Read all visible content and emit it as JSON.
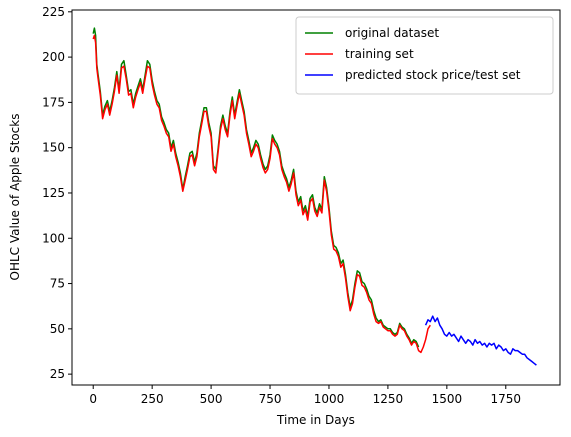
{
  "chart_data": {
    "type": "line",
    "title": "",
    "xlabel": "Time in Days",
    "ylabel": "OHLC Value of Apple Stocks",
    "xlim": [
      -90,
      1980
    ],
    "ylim": [
      19,
      226
    ],
    "xticks": [
      0,
      250,
      500,
      750,
      1000,
      1250,
      1500,
      1750
    ],
    "yticks": [
      25,
      50,
      75,
      100,
      125,
      150,
      175,
      200,
      225
    ],
    "grid": false,
    "legend_position": "top-right",
    "series": [
      {
        "name": "original dataset",
        "color": "#008000",
        "x": [
          0,
          5,
          10,
          15,
          20,
          30,
          40,
          50,
          60,
          70,
          80,
          90,
          100,
          110,
          120,
          130,
          140,
          150,
          160,
          170,
          180,
          190,
          200,
          210,
          220,
          230,
          240,
          250,
          260,
          270,
          280,
          290,
          300,
          310,
          320,
          330,
          340,
          350,
          360,
          370,
          380,
          390,
          400,
          410,
          420,
          430,
          440,
          450,
          460,
          470,
          480,
          490,
          500,
          510,
          520,
          530,
          540,
          550,
          560,
          570,
          580,
          590,
          600,
          610,
          620,
          630,
          640,
          650,
          660,
          670,
          680,
          690,
          700,
          710,
          720,
          730,
          740,
          750,
          760,
          770,
          780,
          790,
          800,
          810,
          820,
          830,
          840,
          850,
          860,
          870,
          880,
          890,
          900,
          910,
          920,
          930,
          940,
          950,
          960,
          970,
          980,
          990,
          1000,
          1010,
          1020,
          1030,
          1040,
          1050,
          1060,
          1070,
          1080,
          1090,
          1100,
          1110,
          1120,
          1130,
          1140,
          1150,
          1160,
          1170,
          1180,
          1190,
          1200,
          1210,
          1220,
          1230,
          1240,
          1250,
          1260,
          1270,
          1280,
          1290,
          1300,
          1310,
          1320,
          1330,
          1340,
          1350,
          1360,
          1370,
          1380
        ],
        "y": [
          213,
          216,
          212,
          196,
          191,
          181,
          168,
          173,
          176,
          170,
          176,
          183,
          192,
          182,
          196,
          198,
          190,
          181,
          182,
          174,
          180,
          184,
          188,
          182,
          190,
          198,
          196,
          187,
          181,
          176,
          174,
          167,
          164,
          160,
          158,
          150,
          154,
          147,
          142,
          136,
          127,
          134,
          140,
          147,
          148,
          142,
          147,
          158,
          165,
          172,
          172,
          164,
          158,
          140,
          138,
          150,
          162,
          168,
          162,
          158,
          170,
          178,
          168,
          175,
          182,
          176,
          170,
          160,
          154,
          147,
          150,
          154,
          152,
          146,
          141,
          138,
          140,
          146,
          157,
          154,
          152,
          148,
          140,
          136,
          133,
          128,
          132,
          138,
          126,
          120,
          123,
          115,
          118,
          112,
          122,
          124,
          117,
          114,
          119,
          116,
          134,
          128,
          117,
          104,
          96,
          95,
          92,
          86,
          88,
          80,
          70,
          62,
          66,
          75,
          82,
          81,
          76,
          75,
          72,
          68,
          66,
          60,
          56,
          54,
          55,
          52,
          51,
          50,
          50,
          48,
          47,
          48,
          53,
          51,
          50,
          47,
          45,
          42,
          44,
          43,
          40
        ]
      },
      {
        "name": "training set",
        "color": "#ff0000",
        "x": [
          0,
          5,
          10,
          15,
          20,
          30,
          40,
          50,
          60,
          70,
          80,
          90,
          100,
          110,
          120,
          130,
          140,
          150,
          160,
          170,
          180,
          190,
          200,
          210,
          220,
          230,
          240,
          250,
          260,
          270,
          280,
          290,
          300,
          310,
          320,
          330,
          340,
          350,
          360,
          370,
          380,
          390,
          400,
          410,
          420,
          430,
          440,
          450,
          460,
          470,
          480,
          490,
          500,
          510,
          520,
          530,
          540,
          550,
          560,
          570,
          580,
          590,
          600,
          610,
          620,
          630,
          640,
          650,
          660,
          670,
          680,
          690,
          700,
          710,
          720,
          730,
          740,
          750,
          760,
          770,
          780,
          790,
          800,
          810,
          820,
          830,
          840,
          850,
          860,
          870,
          880,
          890,
          900,
          910,
          920,
          930,
          940,
          950,
          960,
          970,
          980,
          990,
          1000,
          1010,
          1020,
          1030,
          1040,
          1050,
          1060,
          1070,
          1080,
          1090,
          1100,
          1110,
          1120,
          1130,
          1140,
          1150,
          1160,
          1170,
          1180,
          1190,
          1200,
          1210,
          1220,
          1230,
          1240,
          1250,
          1260,
          1270,
          1280,
          1290,
          1300,
          1310,
          1320,
          1330,
          1340,
          1350,
          1360,
          1370,
          1380,
          1390,
          1400,
          1410,
          1420,
          1430
        ],
        "y": [
          210,
          212,
          208,
          194,
          189,
          179,
          166,
          171,
          174,
          168,
          174,
          181,
          190,
          180,
          194,
          195,
          188,
          179,
          180,
          172,
          178,
          182,
          186,
          180,
          188,
          195,
          194,
          185,
          179,
          174,
          172,
          165,
          162,
          158,
          156,
          148,
          152,
          145,
          140,
          134,
          126,
          132,
          138,
          145,
          146,
          140,
          145,
          156,
          163,
          170,
          170,
          162,
          156,
          138,
          136,
          148,
          160,
          166,
          160,
          156,
          168,
          176,
          166,
          173,
          180,
          174,
          168,
          158,
          152,
          145,
          148,
          152,
          150,
          144,
          139,
          136,
          138,
          144,
          155,
          152,
          150,
          146,
          138,
          134,
          131,
          126,
          130,
          136,
          124,
          118,
          121,
          113,
          116,
          110,
          120,
          122,
          115,
          112,
          117,
          114,
          132,
          126,
          115,
          102,
          94,
          93,
          90,
          84,
          86,
          78,
          68,
          60,
          64,
          73,
          80,
          79,
          74,
          73,
          70,
          66,
          64,
          58,
          54,
          53,
          54,
          51,
          50,
          49,
          49,
          47,
          46,
          47,
          52,
          50,
          49,
          46,
          44,
          41,
          43,
          42,
          38,
          37,
          40,
          44,
          50,
          52
        ]
      },
      {
        "name": "predicted stock price/test set",
        "color": "#0000ff",
        "x": [
          1410,
          1420,
          1430,
          1440,
          1450,
          1460,
          1470,
          1480,
          1490,
          1500,
          1510,
          1520,
          1530,
          1540,
          1550,
          1560,
          1570,
          1580,
          1590,
          1600,
          1610,
          1620,
          1630,
          1640,
          1650,
          1660,
          1670,
          1680,
          1690,
          1700,
          1710,
          1720,
          1730,
          1740,
          1750,
          1760,
          1770,
          1780,
          1790,
          1800,
          1810,
          1820,
          1830,
          1840,
          1850,
          1860,
          1870,
          1880
        ],
        "y": [
          52,
          55,
          54,
          57,
          54,
          56,
          52,
          50,
          47,
          46,
          48,
          46,
          47,
          45,
          43,
          46,
          44,
          42,
          44,
          43,
          41,
          44,
          42,
          43,
          41,
          42,
          40,
          42,
          41,
          42,
          39,
          41,
          40,
          38,
          39,
          37,
          36,
          39,
          38,
          38,
          37,
          36,
          36,
          34,
          33,
          32,
          31,
          30
        ]
      }
    ]
  }
}
